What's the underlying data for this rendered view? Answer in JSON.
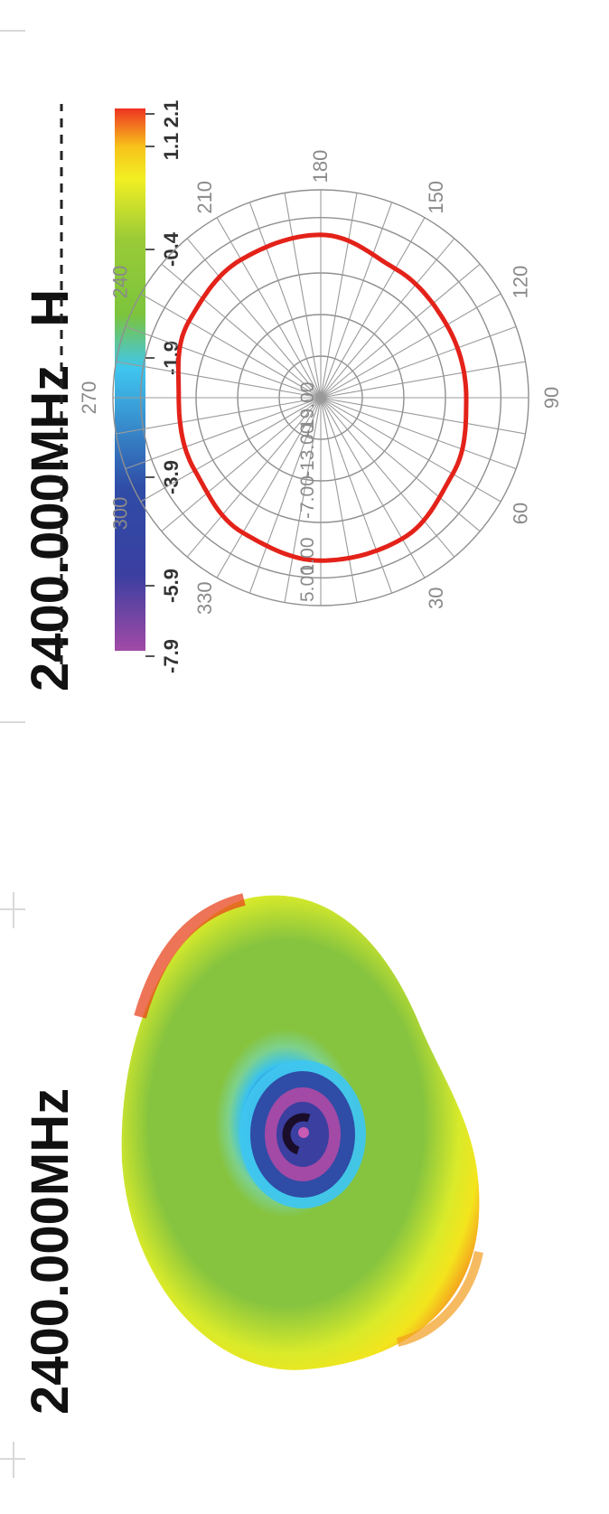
{
  "left_panel": {
    "title": "2400.000MHz",
    "colorbar": {
      "ticks": [
        "2.1",
        "1.1",
        "-0.4",
        "-1.9",
        "-3.9",
        "-5.9",
        "-7.9"
      ],
      "colors": [
        "#ee3322",
        "#f7c21b",
        "#f2ef22",
        "#7cc43c",
        "#3fc6ef",
        "#2f4ca6",
        "#3a3fa0",
        "#a24aa6"
      ]
    }
  },
  "right_panel": {
    "title": "2400.000MHz",
    "polarization_label": "H"
  },
  "chart_data": {
    "type": "polar",
    "title": "2400.000MHz",
    "subtitle": "H",
    "radial_labels": [
      "5.00",
      "1.00",
      "-7.00",
      "-13.00",
      "-19.00"
    ],
    "radial_values": [
      5,
      1,
      -7,
      -13,
      -19
    ],
    "r_range": [
      -25,
      5
    ],
    "angle_labels": [
      "30",
      "60",
      "90",
      "120",
      "150",
      "180",
      "210",
      "240",
      "270",
      "300",
      "330"
    ],
    "angle_step_deg": 10,
    "series": [
      {
        "color": "#e32219",
        "angles_deg": [
          0,
          30,
          60,
          90,
          120,
          150,
          180,
          210,
          240,
          270,
          300,
          330
        ],
        "values": [
          -1.5,
          -1.5,
          -3.0,
          -4.0,
          -4.0,
          -3.5,
          -1.5,
          -2.0,
          -3.0,
          -4.5,
          -4.0,
          -2.5
        ]
      }
    ]
  }
}
